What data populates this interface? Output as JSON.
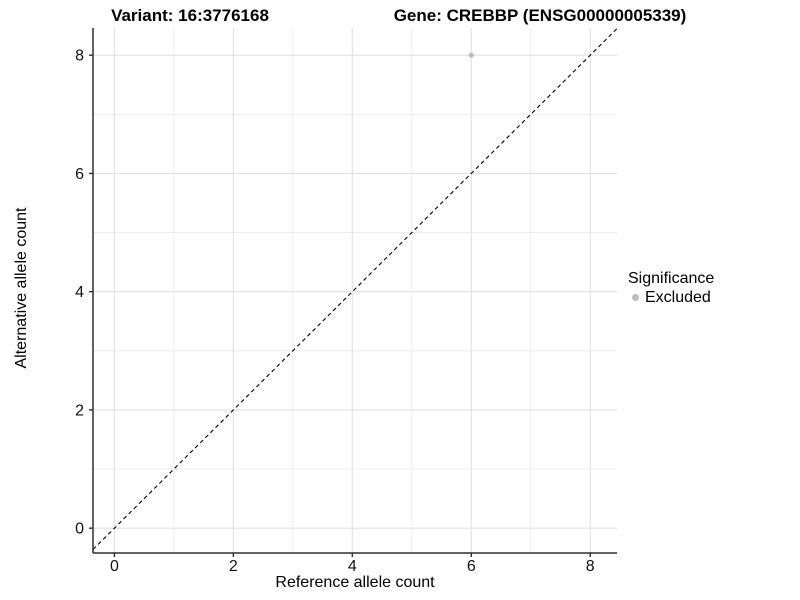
{
  "chart_data": {
    "type": "scatter",
    "title_left": "Variant: 16:3776168",
    "title_right": "Gene: CREBBP (ENSG00000005339)",
    "xlabel": "Reference allele count",
    "ylabel": "Alternative allele count",
    "xlim": [
      -0.36,
      8.45
    ],
    "ylim": [
      -0.42,
      8.46
    ],
    "x_ticks": [
      0,
      2,
      4,
      6,
      8
    ],
    "y_ticks": [
      0,
      2,
      4,
      6,
      8
    ],
    "x_minor_gridlines": [
      1,
      3,
      5,
      7
    ],
    "y_minor_gridlines": [
      1,
      3,
      5,
      7
    ],
    "grid": true,
    "legend_position": "right",
    "points": [
      {
        "x": 6,
        "y": 8,
        "series": "Excluded",
        "color": "#bdbdbd"
      }
    ],
    "reference_line": {
      "type": "identity",
      "slope": 1,
      "intercept": 0,
      "style": "dashed",
      "color": "#000000"
    }
  },
  "legend": {
    "title": "Significance",
    "items": [
      {
        "label": "Excluded",
        "color": "#bdbdbd"
      }
    ]
  },
  "colors": {
    "background": "#ffffff",
    "grid_major": "#e2e2e2",
    "grid_minor": "#ececec",
    "axis_line": "#2e2e2e",
    "tick_mark": "#2e2e2e",
    "tick_text": "#111111",
    "point": "#bdbdbd"
  }
}
